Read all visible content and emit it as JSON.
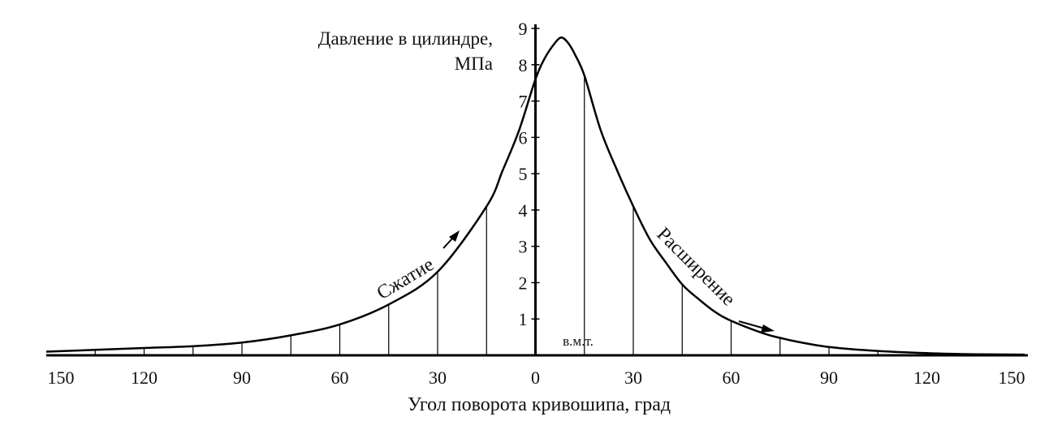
{
  "chart_data": {
    "type": "line",
    "title": "",
    "ylabel_line1": "Давление в цилиндре,",
    "ylabel_line2": "МПа",
    "xlabel": "Угол поворота кривошипа, град",
    "x_tick_labels": [
      "150",
      "120",
      "90",
      "60",
      "30",
      "0",
      "30",
      "60",
      "90",
      "120",
      "150"
    ],
    "y_tick_labels": [
      "1",
      "2",
      "3",
      "4",
      "5",
      "6",
      "7",
      "8",
      "9"
    ],
    "xlim": [
      -150,
      150
    ],
    "ylim": [
      0,
      9
    ],
    "tdc_label": "в.м.т.",
    "annotations": {
      "compression": "Сжатие",
      "expansion": "Расширение"
    },
    "series": [
      {
        "x": [
          -150,
          -135,
          -120,
          -105,
          -90,
          -75,
          -60,
          -45,
          -30,
          -15,
          -10,
          -5,
          0,
          3,
          6,
          8,
          10,
          12,
          15,
          20,
          25,
          30,
          35,
          40,
          45,
          50,
          55,
          60,
          70,
          75,
          80,
          90,
          105,
          120,
          135,
          150
        ],
        "y": [
          0.1,
          0.15,
          0.2,
          0.25,
          0.35,
          0.55,
          0.85,
          1.4,
          2.3,
          4.1,
          5.1,
          6.2,
          7.6,
          8.2,
          8.6,
          8.75,
          8.6,
          8.3,
          7.7,
          6.2,
          5.1,
          4.1,
          3.2,
          2.55,
          1.95,
          1.55,
          1.2,
          0.95,
          0.6,
          0.48,
          0.38,
          0.23,
          0.12,
          0.06,
          0.03,
          0.02
        ]
      }
    ],
    "ordinates_x": [
      -135,
      -120,
      -105,
      -90,
      -75,
      -60,
      -45,
      -30,
      -15,
      15,
      30,
      45,
      60,
      75,
      90,
      105,
      120,
      135
    ]
  }
}
